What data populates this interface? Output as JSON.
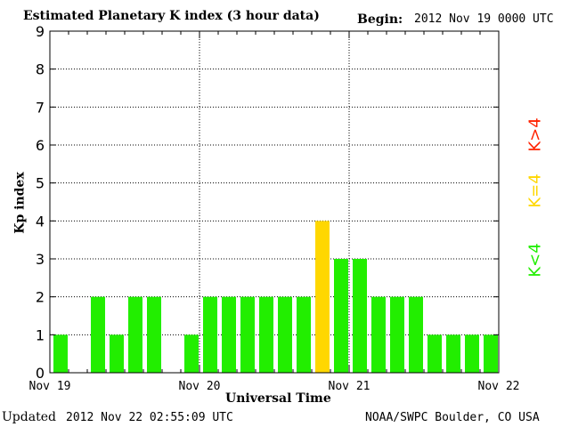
{
  "header": {
    "title": "Estimated Planetary K index (3 hour data)",
    "begin_label": "Begin:",
    "begin_value": "2012 Nov 19 0000 UTC"
  },
  "footer": {
    "updated_label": "Updated",
    "updated_value": "2012 Nov 22 02:55:09 UTC",
    "credit": "NOAA/SWPC Boulder, CO USA"
  },
  "legend": {
    "gt4": {
      "label": "K>4",
      "color": "#ff2200"
    },
    "eq4": {
      "label": "K=4",
      "color": "#ffd700"
    },
    "lt4": {
      "label": "K<4",
      "color": "#22ee00"
    }
  },
  "chart_data": {
    "type": "bar",
    "title": "Estimated Planetary K index (3 hour data)",
    "xlabel": "Universal Time",
    "ylabel": "Kp index",
    "ylim": [
      0,
      9
    ],
    "yticks": [
      "0",
      "1",
      "2",
      "3",
      "4",
      "5",
      "6",
      "7",
      "8",
      "9"
    ],
    "xticks": [
      "Nov 19",
      "Nov 20",
      "Nov 21",
      "Nov 22"
    ],
    "grid": true,
    "slots": 24,
    "values": [
      1,
      0,
      2,
      1,
      2,
      2,
      0,
      1,
      2,
      2,
      2,
      2,
      2,
      2,
      4,
      3,
      3,
      2,
      2,
      2,
      1,
      1,
      1,
      1
    ],
    "colors": {
      "below4": "#22ee00",
      "equal4": "#ffd700",
      "above4": "#ff2200"
    }
  }
}
